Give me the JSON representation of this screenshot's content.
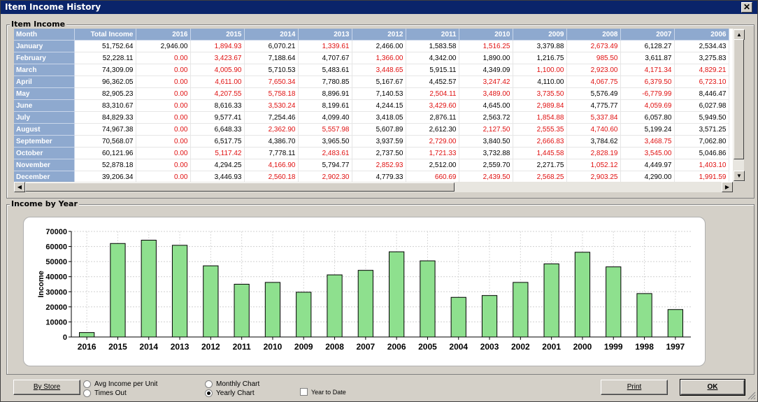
{
  "window": {
    "title": "Item Income History",
    "close_label": "✕"
  },
  "grid_group": {
    "legend": "Item Income"
  },
  "grid": {
    "columns": [
      "Month",
      "Total Income",
      "2016",
      "2015",
      "2014",
      "2013",
      "2012",
      "2011",
      "2010",
      "2009",
      "2008",
      "2007",
      "2006"
    ],
    "rows": [
      {
        "month": "January",
        "cells": [
          "51,752.64",
          "2,946.00",
          "1,894.93",
          "6,070.21",
          "1,339.61",
          "2,466.00",
          "1,583.58",
          "1,516.25",
          "3,379.88",
          "2,673.49",
          "6,128.27",
          "2,534.43"
        ]
      },
      {
        "month": "February",
        "cells": [
          "52,228.11",
          "0.00",
          "3,423.67",
          "7,188.64",
          "4,707.67",
          "1,366.00",
          "4,342.00",
          "1,890.00",
          "1,216.75",
          "985.50",
          "3,611.87",
          "3,275.83"
        ]
      },
      {
        "month": "March",
        "cells": [
          "74,309.09",
          "0.00",
          "4,005.90",
          "5,710.53",
          "5,483.61",
          "3,448.65",
          "5,915.11",
          "4,349.09",
          "1,100.00",
          "2,923.00",
          "4,171.34",
          "4,829.21"
        ]
      },
      {
        "month": "April",
        "cells": [
          "96,362.05",
          "0.00",
          "4,611.00",
          "7,650.34",
          "7,780.85",
          "5,167.67",
          "4,452.57",
          "3,247.42",
          "4,110.00",
          "4,067.75",
          "6,379.50",
          "6,723.10"
        ]
      },
      {
        "month": "May",
        "cells": [
          "82,905.23",
          "0.00",
          "4,207.55",
          "5,758.18",
          "8,896.91",
          "7,140.53",
          "2,504.11",
          "3,489.00",
          "3,735.50",
          "5,576.49",
          "-6,779.99",
          "8,446.47"
        ]
      },
      {
        "month": "June",
        "cells": [
          "83,310.67",
          "0.00",
          "8,616.33",
          "3,530.24",
          "8,199.61",
          "4,244.15",
          "3,429.60",
          "4,645.00",
          "2,989.84",
          "4,775.77",
          "4,059.69",
          "6,027.98"
        ]
      },
      {
        "month": "July",
        "cells": [
          "84,829.33",
          "0.00",
          "9,577.41",
          "7,254.46",
          "4,099.40",
          "3,418.05",
          "2,876.11",
          "2,563.72",
          "1,854.88",
          "5,337.84",
          "6,057.80",
          "5,949.50"
        ]
      },
      {
        "month": "August",
        "cells": [
          "74,967.38",
          "0.00",
          "6,648.33",
          "2,362.90",
          "5,557.98",
          "5,607.89",
          "2,612.30",
          "2,127.50",
          "2,555.35",
          "4,740.60",
          "5,199.24",
          "3,571.25"
        ]
      },
      {
        "month": "September",
        "cells": [
          "70,568.07",
          "0.00",
          "6,517.75",
          "4,386.70",
          "3,965.50",
          "3,937.59",
          "2,729.00",
          "3,840.50",
          "2,666.83",
          "3,784.62",
          "3,468.75",
          "7,062.80"
        ]
      },
      {
        "month": "October",
        "cells": [
          "60,121.96",
          "0.00",
          "5,117.42",
          "7,778.11",
          "2,483.61",
          "2,737.50",
          "1,721.33",
          "3,732.88",
          "1,445.58",
          "2,828.19",
          "3,545.00",
          "5,046.86"
        ]
      },
      {
        "month": "November",
        "cells": [
          "52,878.18",
          "0.00",
          "4,294.25",
          "4,166.90",
          "5,794.77",
          "2,852.93",
          "2,512.00",
          "2,559.70",
          "2,271.75",
          "1,052.12",
          "4,449.97",
          "1,403.10"
        ]
      },
      {
        "month": "December",
        "cells": [
          "39,206.34",
          "0.00",
          "3,446.93",
          "2,560.18",
          "2,902.30",
          "4,779.33",
          "660.69",
          "2,439.50",
          "2,568.25",
          "2,903.25",
          "4,290.00",
          "1,991.59"
        ]
      }
    ],
    "negative_color": "#e01010",
    "header_color": "#8ea9cf"
  },
  "chart_group": {
    "legend": "Income by Year"
  },
  "chart_data": {
    "type": "bar",
    "title": "",
    "xlabel": "",
    "ylabel": "Income",
    "ylim": [
      0,
      70000
    ],
    "yticks": [
      0,
      10000,
      20000,
      30000,
      40000,
      50000,
      60000,
      70000
    ],
    "ytick_labels": [
      "0",
      "10000",
      "20000",
      "30000",
      "40000",
      "50000",
      "60000",
      "70000"
    ],
    "categories": [
      "2016",
      "2015",
      "2014",
      "2013",
      "2012",
      "2011",
      "2010",
      "2009",
      "2008",
      "2007",
      "2006",
      "2005",
      "2004",
      "2003",
      "2002",
      "2001",
      "2000",
      "1999",
      "1998",
      "1997"
    ],
    "values": [
      2946,
      62000,
      64200,
      60800,
      47200,
      35000,
      36200,
      29700,
      41200,
      44200,
      56500,
      50500,
      26300,
      27500,
      36200,
      48500,
      56200,
      46500,
      28800,
      18200
    ],
    "bar_color": "#8ee08e",
    "grid": true
  },
  "controls": {
    "by_store_label": "By Store",
    "radio_avg_label": "Avg Income per Unit",
    "radio_times_label": "Times Out",
    "radio_monthly_label": "Monthly Chart",
    "radio_yearly_label": "Yearly Chart",
    "year_to_date_label": "Year to Date",
    "print_label": "Print",
    "ok_label": "OK"
  }
}
